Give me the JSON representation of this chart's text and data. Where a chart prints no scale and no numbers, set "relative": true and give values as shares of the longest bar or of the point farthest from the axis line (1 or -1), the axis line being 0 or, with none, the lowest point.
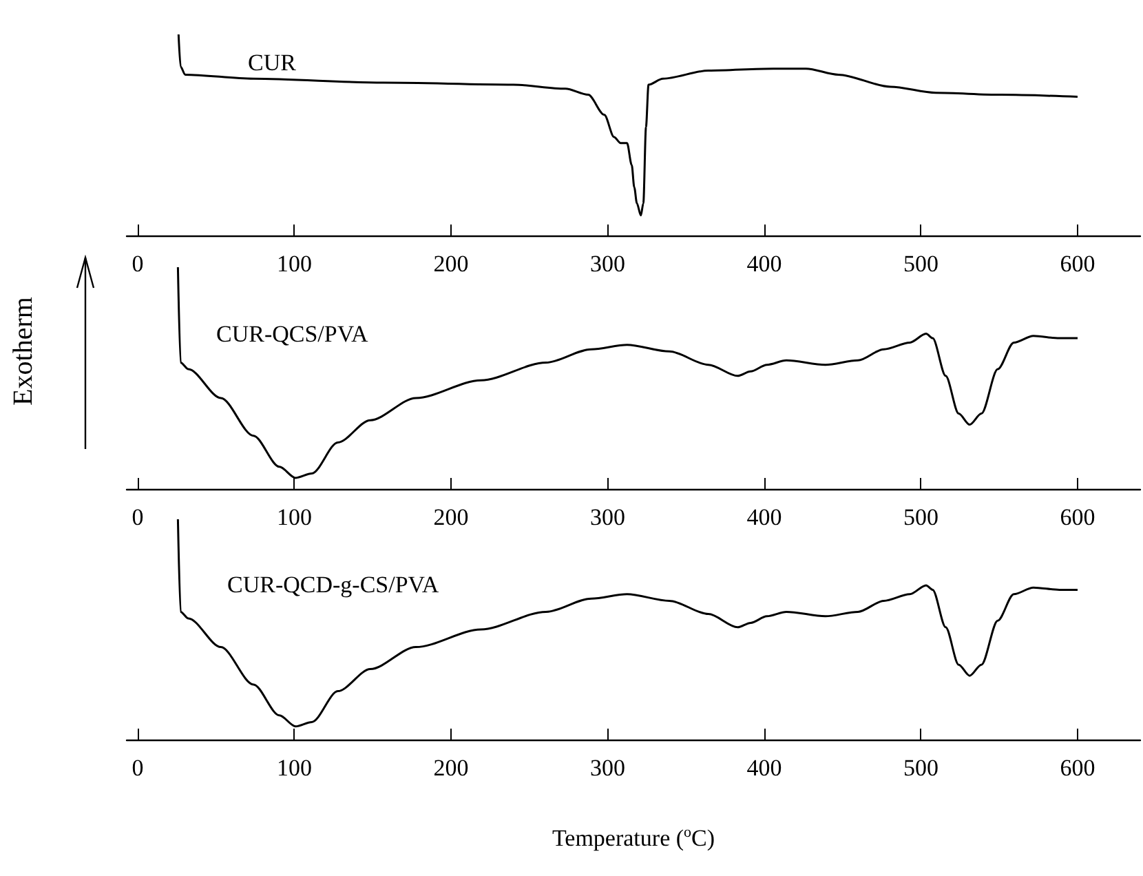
{
  "chart_data": [
    {
      "type": "line",
      "relative": true,
      "marker": "none",
      "tick_labels": "x",
      "xlim": [
        -7,
        640
      ],
      "xticks": [
        0,
        100,
        200,
        300,
        400,
        500,
        600
      ],
      "x": [
        26.1,
        27.4,
        30.3,
        73.9,
        156.8,
        239.8,
        273.0,
        287.6,
        297.9,
        304.1,
        308.3,
        312.4,
        315.4,
        317.0,
        318.7,
        321.2,
        322.8,
        324.5,
        326.1,
        335.3,
        364.3,
        405.8,
        426.6,
        447.3,
        480.5,
        509.5,
        551.0,
        600
      ],
      "series": [
        {
          "name": "CUR",
          "color": "#000000",
          "values": [
            1,
            0.84,
            0.8,
            0.78,
            0.76,
            0.75,
            0.73,
            0.7,
            0.6,
            0.49,
            0.46,
            0.46,
            0.35,
            0.24,
            0.16,
            0.1,
            0.16,
            0.54,
            0.75,
            0.78,
            0.82,
            0.83,
            0.83,
            0.8,
            0.74,
            0.71,
            0.7,
            0.69
          ]
        }
      ]
    },
    {
      "type": "line",
      "relative": true,
      "marker": "none",
      "tick_labels": "x",
      "xlim": [
        -7,
        640
      ],
      "xticks": [
        0,
        100,
        200,
        300,
        400,
        500,
        600
      ],
      "ylabel": "Exotherm",
      "x": [
        25.7,
        27.4,
        32.4,
        53.1,
        73.9,
        90.5,
        100.8,
        111.2,
        127.8,
        148.5,
        177.6,
        219.1,
        260.6,
        289.6,
        312.4,
        339.4,
        364.3,
        383.0,
        391.3,
        401.7,
        414.1,
        439.0,
        459.8,
        476.3,
        492.9,
        503.3,
        507.5,
        515.8,
        524.1,
        531.1,
        538.6,
        549.0,
        559.3,
        571.8,
        588.4,
        600
      ],
      "series": [
        {
          "name": "CUR-QCS/PVA",
          "color": "#000000",
          "values": [
            1,
            0.57,
            0.54,
            0.41,
            0.24,
            0.1,
            0.05,
            0.07,
            0.21,
            0.31,
            0.41,
            0.49,
            0.57,
            0.63,
            0.65,
            0.62,
            0.56,
            0.51,
            0.53,
            0.56,
            0.58,
            0.56,
            0.58,
            0.63,
            0.66,
            0.7,
            0.68,
            0.51,
            0.34,
            0.29,
            0.34,
            0.54,
            0.66,
            0.69,
            0.68,
            0.68
          ]
        }
      ]
    },
    {
      "type": "line",
      "relative": true,
      "marker": "none",
      "tick_labels": "x",
      "xlim": [
        -7,
        640
      ],
      "xticks": [
        0,
        100,
        200,
        300,
        400,
        500,
        600
      ],
      "xlabel": "Temperature ($^{o}$C)",
      "x": [
        25.7,
        27.4,
        32.4,
        53.1,
        73.9,
        90.5,
        100.8,
        111.2,
        127.8,
        148.5,
        177.6,
        219.1,
        260.6,
        289.6,
        312.4,
        339.4,
        364.3,
        383.0,
        391.3,
        401.7,
        414.1,
        439.0,
        459.8,
        476.3,
        492.9,
        503.3,
        507.5,
        515.8,
        524.1,
        531.1,
        538.6,
        549.0,
        559.3,
        571.8,
        588.4,
        600
      ],
      "series": [
        {
          "name": "CUR-QCD-g-CS/PVA",
          "color": "#000000",
          "values": [
            1,
            0.58,
            0.55,
            0.42,
            0.25,
            0.11,
            0.06,
            0.08,
            0.22,
            0.32,
            0.42,
            0.5,
            0.58,
            0.64,
            0.66,
            0.63,
            0.57,
            0.51,
            0.53,
            0.56,
            0.58,
            0.56,
            0.58,
            0.63,
            0.66,
            0.7,
            0.68,
            0.51,
            0.34,
            0.29,
            0.34,
            0.54,
            0.66,
            0.69,
            0.68,
            0.68
          ]
        }
      ]
    }
  ]
}
